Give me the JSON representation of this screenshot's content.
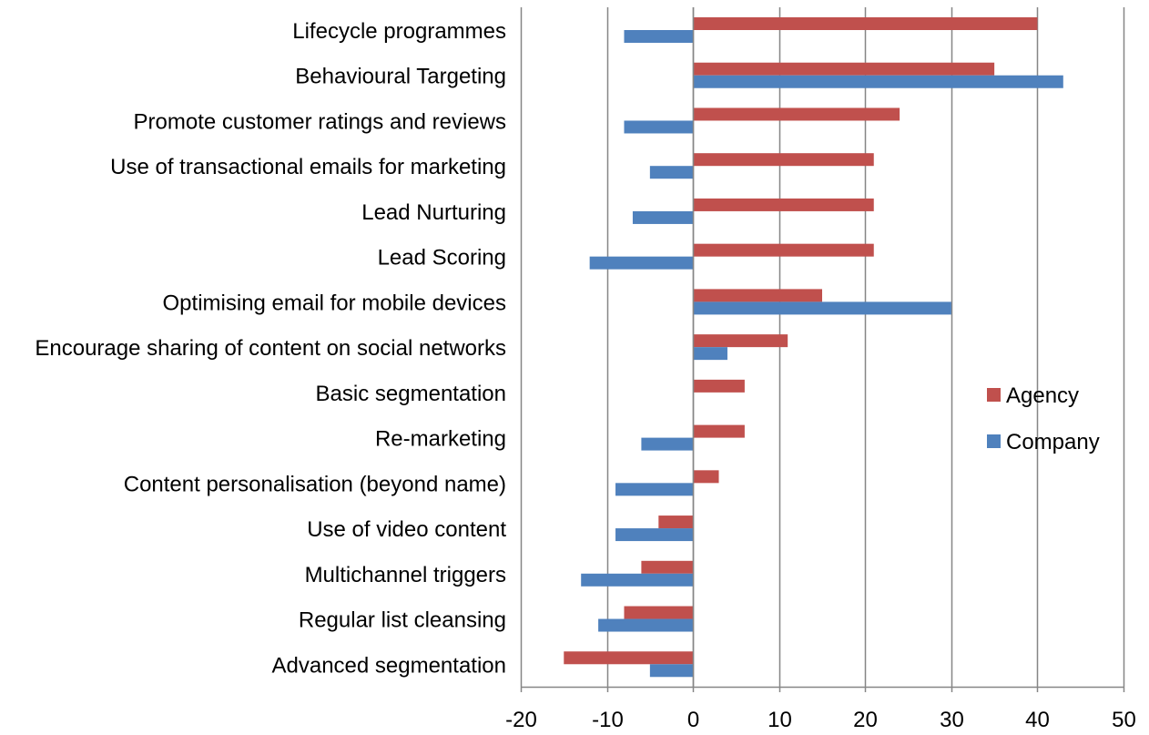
{
  "chart_data": {
    "type": "bar",
    "orientation": "horizontal",
    "title": "",
    "xlabel": "",
    "ylabel": "",
    "xlim": [
      -20,
      50
    ],
    "x_ticks": [
      -20,
      -10,
      0,
      10,
      20,
      30,
      40,
      50
    ],
    "grid": "vertical",
    "legend_position": "right",
    "categories": [
      "Lifecycle programmes",
      "Behavioural Targeting",
      "Promote customer ratings and reviews",
      "Use of transactional emails for marketing",
      "Lead Nurturing",
      "Lead Scoring",
      "Optimising email for mobile devices",
      "Encourage sharing of content on social networks",
      "Basic segmentation",
      "Re-marketing",
      "Content personalisation (beyond name)",
      "Use of video content",
      "Multichannel triggers",
      "Regular list cleansing",
      "Advanced segmentation"
    ],
    "series": [
      {
        "name": "Agency",
        "color": "#C0504D",
        "values": [
          40,
          35,
          24,
          21,
          21,
          21,
          15,
          11,
          6,
          6,
          3,
          -4,
          -6,
          -8,
          -15
        ]
      },
      {
        "name": "Company",
        "color": "#4F81BD",
        "values": [
          -8,
          43,
          -8,
          -5,
          -7,
          -12,
          30,
          4,
          0,
          -6,
          -9,
          -9,
          -13,
          -11,
          -5
        ]
      }
    ]
  }
}
